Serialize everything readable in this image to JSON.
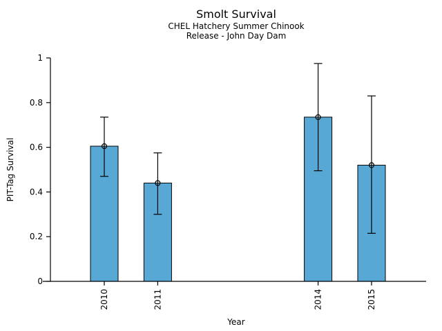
{
  "chart_data": {
    "type": "bar",
    "title": "Smolt Survival",
    "subtitle1": "CHEL Hatchery Summer Chinook",
    "subtitle2": "Release - John Day Dam",
    "xlabel": "Year",
    "ylabel": "PIT-Tag Survival",
    "ylim": [
      0,
      1
    ],
    "yticks": [
      0,
      0.2,
      0.4,
      0.6,
      0.8,
      1
    ],
    "ytick_labels": [
      "0",
      "0.2",
      "0.4",
      "0.6",
      "0.8",
      "1"
    ],
    "categories": [
      "2010",
      "2011",
      "2014",
      "2015"
    ],
    "years": [
      2010,
      2011,
      2014,
      2015
    ],
    "values": [
      0.605,
      0.44,
      0.735,
      0.52
    ],
    "error_low": [
      0.47,
      0.3,
      0.495,
      0.215
    ],
    "error_high": [
      0.735,
      0.575,
      0.975,
      0.83
    ],
    "marker": "open-circle",
    "bar_color": "#58A8D5",
    "bar_edge_color": "#000000",
    "error_bar_color": "#000000",
    "grid": false,
    "legend_position": "none"
  }
}
